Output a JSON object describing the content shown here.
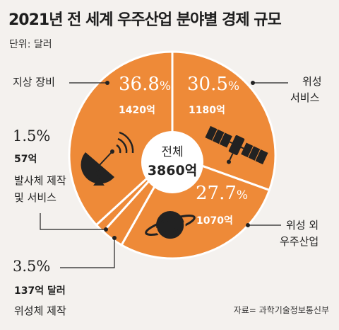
{
  "title": "2021년 전 세계 우주산업 분야별 경제 규모",
  "unit_label": "단위: 달러",
  "source": "자료= 과학기술정보통신부",
  "center": {
    "label": "전체",
    "value": "3860억"
  },
  "chart_data": {
    "type": "pie",
    "title": "2021년 전 세계 우주산업 분야별 경제 규모",
    "unit": "달러",
    "total": "3860억",
    "slices": [
      {
        "label": "지상 장비",
        "percent": 36.8,
        "percent_text": "36.8",
        "value_text": "1420억"
      },
      {
        "label": "위성 서비스",
        "percent": 30.5,
        "percent_text": "30.5",
        "value_text": "1180억"
      },
      {
        "label": "위성 외 우주산업",
        "percent": 27.7,
        "percent_text": "27.7",
        "value_text": "1070억"
      },
      {
        "label": "위성체 제작",
        "percent": 3.5,
        "percent_text": "3.5%",
        "value_text": "137억 달러"
      },
      {
        "label": "발사체 제작 및 서비스",
        "percent": 1.5,
        "percent_text": "1.5%",
        "value_text": "57억"
      }
    ]
  },
  "labels": {
    "ground": {
      "name": "지상 장비"
    },
    "satellite_service": {
      "name_line1": "위성",
      "name_line2": "서비스"
    },
    "other": {
      "name_line1": "위성 외",
      "name_line2": "우주산업"
    },
    "launch": {
      "name_line1": "발사체 제작",
      "name_line2": "및 서비스"
    },
    "sat_mfg": {
      "name": "위성체 제작"
    }
  },
  "colors": {
    "slice": "#ee8a38",
    "divider": "#ffffff",
    "leader": "#222222",
    "background": "#f4f1ee"
  },
  "icons": [
    "satellite-dish-icon",
    "satellite-icon",
    "planet-icon"
  ]
}
